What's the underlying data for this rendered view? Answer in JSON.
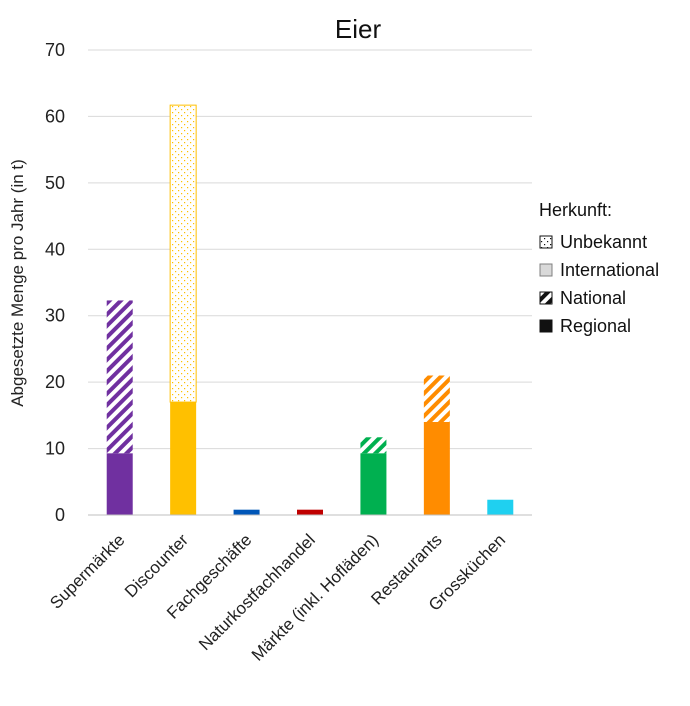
{
  "chart_data": {
    "type": "bar",
    "stacked": true,
    "title": "Eier",
    "xlabel": "",
    "ylabel": "Abgesetzte Menge pro Jahr (in t)",
    "ylim": [
      0,
      70
    ],
    "yticks": [
      0,
      10,
      20,
      30,
      40,
      50,
      60,
      70
    ],
    "grid": true,
    "legend_position": "right",
    "legend_title": "Herkunft:",
    "categories": [
      "Supermärkte",
      "Discounter",
      "Fachgeschäfte",
      "Naturkostfachhandel",
      "Märkte (inkl. Hofläden)",
      "Restaurants",
      "Grossküchen"
    ],
    "category_colors": [
      "#7030a0",
      "#ffc000",
      "#0056b8",
      "#c00000",
      "#00b050",
      "#ff8c00",
      "#1fd0f0"
    ],
    "series": [
      {
        "name": "Regional",
        "pattern": "solid",
        "values": [
          9.3,
          17.0,
          0.8,
          0.8,
          9.3,
          14.0,
          2.3
        ]
      },
      {
        "name": "National",
        "pattern": "stripes",
        "values": [
          23.0,
          0.0,
          0.0,
          0.0,
          2.4,
          7.0,
          0.0
        ]
      },
      {
        "name": "International",
        "pattern": "gray",
        "values": [
          0.0,
          0.0,
          0.0,
          0.0,
          0.0,
          0.0,
          0.0
        ]
      },
      {
        "name": "Unbekannt",
        "pattern": "dots",
        "values": [
          0.0,
          44.7,
          0.0,
          0.0,
          0.0,
          0.0,
          0.0
        ]
      }
    ],
    "legend_order": [
      "Unbekannt",
      "International",
      "National",
      "Regional"
    ]
  }
}
